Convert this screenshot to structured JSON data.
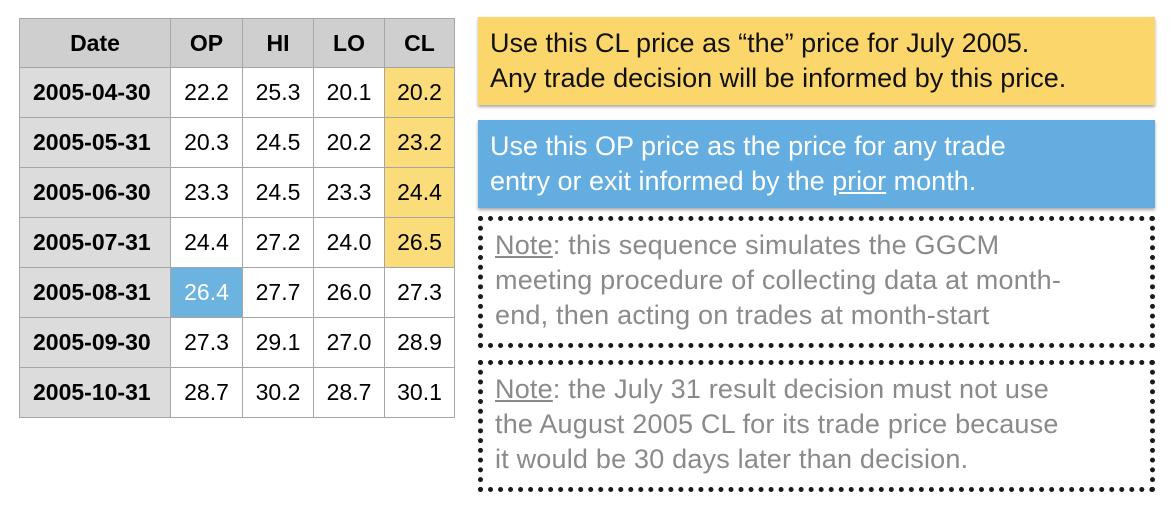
{
  "table": {
    "headers": [
      "Date",
      "OP",
      "HI",
      "LO",
      "CL"
    ],
    "rows": [
      [
        "2005-04-30",
        "22.2",
        "25.3",
        "20.1",
        "20.2"
      ],
      [
        "2005-05-31",
        "20.3",
        "24.5",
        "20.2",
        "23.2"
      ],
      [
        "2005-06-30",
        "23.3",
        "24.5",
        "23.3",
        "24.4"
      ],
      [
        "2005-07-31",
        "24.4",
        "27.2",
        "24.0",
        "26.5"
      ],
      [
        "2005-08-31",
        "26.4",
        "27.7",
        "26.0",
        "27.3"
      ],
      [
        "2005-09-30",
        "27.3",
        "29.1",
        "27.0",
        "28.9"
      ],
      [
        "2005-10-31",
        "28.7",
        "30.2",
        "28.7",
        "30.1"
      ]
    ],
    "highlight_colors": {
      "cl": "#fbdc7a",
      "op": "#6cb4df"
    }
  },
  "callouts": {
    "yellow": {
      "line1": "Use this CL price as “the” price for July 2005.",
      "line2": "Any trade decision will be informed by this price."
    },
    "blue": {
      "line1": "Use this OP price as the price for any trade",
      "line2_pre": "entry or exit informed by the ",
      "line2_underlined": "prior",
      "line2_post": " month."
    },
    "note1": {
      "label": "Note",
      "line1": ": this sequence simulates the GGCM",
      "line2": "meeting procedure of collecting data at month-",
      "line3": "end, then acting on trades at month-start"
    },
    "note2": {
      "label": "Note",
      "line1": ": the July 31 result decision must not use",
      "line2": "the August 2005 CL for its trade price because",
      "line3": "it would be 30 days later than decision."
    }
  }
}
